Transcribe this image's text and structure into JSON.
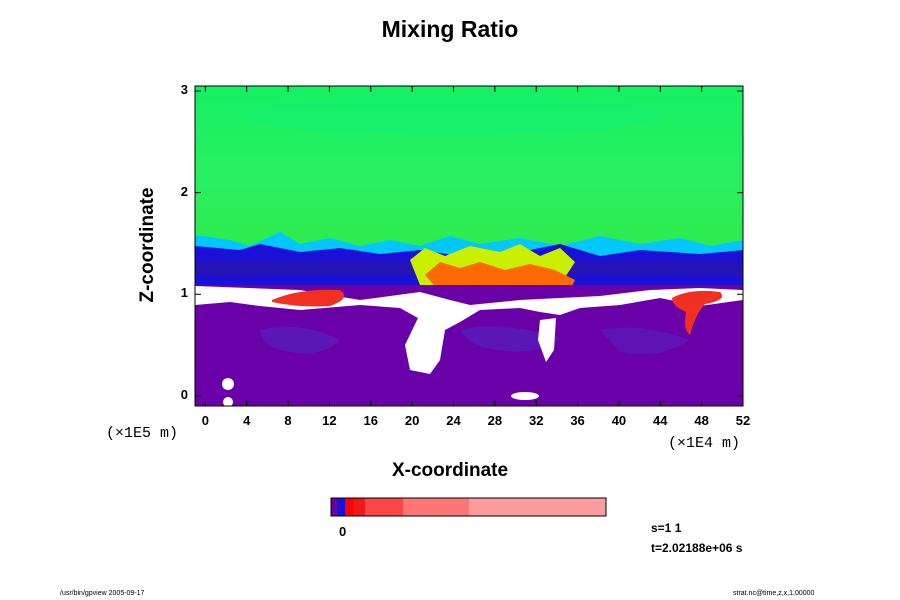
{
  "chart_data": {
    "type": "heatmap",
    "title": "Mixing Ratio",
    "xlabel": "X-coordinate",
    "ylabel": "Z-coordinate",
    "x_ticks": [
      "0",
      "4",
      "8",
      "12",
      "16",
      "20",
      "24",
      "28",
      "32",
      "36",
      "40",
      "44",
      "48",
      "52"
    ],
    "y_ticks": [
      "0",
      "1",
      "2",
      "3"
    ],
    "x_scale_label": "(×1E4 m)",
    "y_scale_label": "(×1E5 m)",
    "xlim": [
      -1,
      52
    ],
    "ylim": [
      -0.1,
      3.05
    ],
    "colorbar": {
      "tick_label": "0",
      "colors": [
        "#6a00a8",
        "#1a10d8",
        "#ff0000",
        "#f21818",
        "#fb4646",
        "#fc7676",
        "#fc9c9c"
      ]
    },
    "regions": [
      {
        "band": "upper",
        "z_range": [
          1.45,
          3.05
        ],
        "color": "#22f060",
        "description_level": "high"
      },
      {
        "band": "transition",
        "z_range": [
          1.15,
          1.45
        ],
        "colors": [
          "#1a10d8",
          "#00b4ff",
          "#00ffcc"
        ]
      },
      {
        "band": "lower",
        "z_range": [
          -0.1,
          0.9
        ],
        "color": "#6a00a8"
      }
    ]
  },
  "annotations": {
    "step": "s=1 1",
    "time": "t=2.02188e+06 s"
  },
  "footer": {
    "left": "/usr/bin/gpview 2005-09-17",
    "right": "strat.nc@time,z,x,1,00000"
  }
}
